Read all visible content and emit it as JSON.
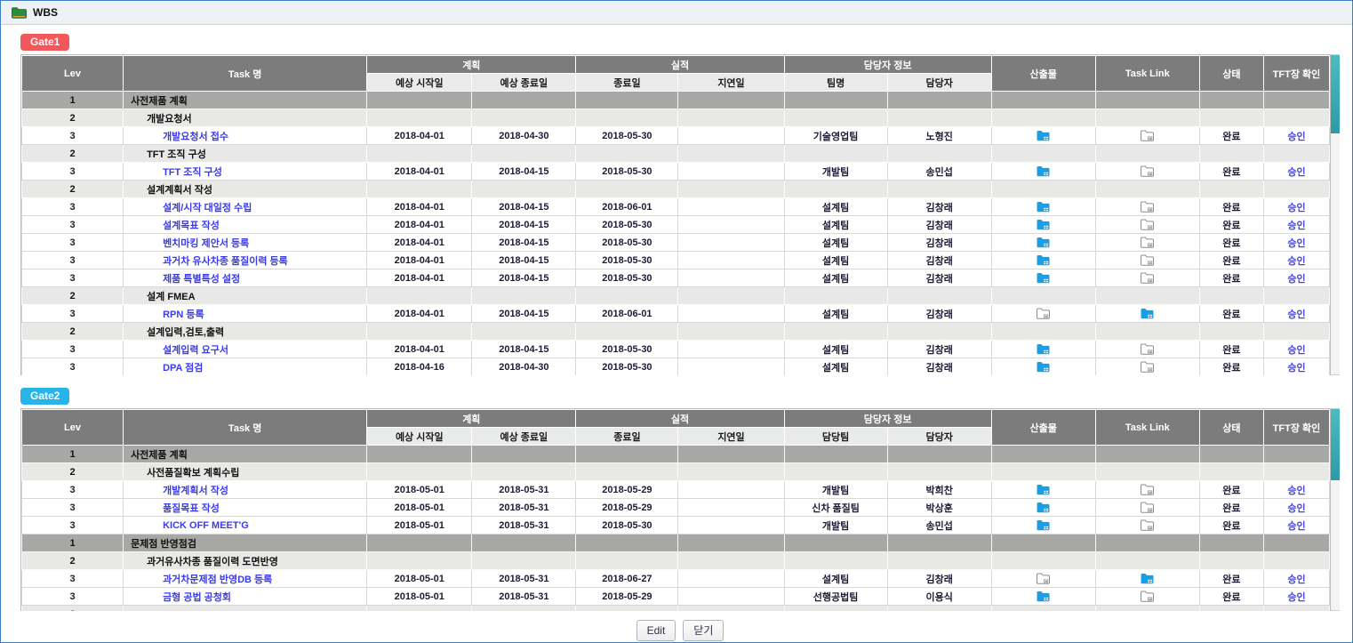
{
  "window": {
    "title": "WBS"
  },
  "icons": {
    "window": "green-folder-icon",
    "deliverable_filled": "blue-folder-icon",
    "tasklink_outline": "gray-folder-icon"
  },
  "colors": {
    "gate1_badge": "#f4575a",
    "gate2_badge": "#28b4e9",
    "header_bg": "#7c7c7c",
    "subheader_bg": "#e9ebeb",
    "level1_row": "#a7a7a5",
    "level2_row": "#e8e8e6",
    "link_blue": "#3b3bee",
    "approve_blue": "#4343f0",
    "deliverable_folder": "#189fe8",
    "tasklink_folder": "#8d8d8d",
    "scrollbar_teal": "#2fa3ad",
    "page_border": "#3f7ec4"
  },
  "tables": [
    {
      "gate": "Gate1",
      "headers": {
        "lev": "Lev",
        "task": "Task 명",
        "plan": "계획",
        "plan_start": "예상 시작일",
        "plan_end": "예상 종료일",
        "actual": "실적",
        "actual_end": "종료일",
        "delay": "지연일",
        "owner_group": "담당자 정보",
        "team": "팀명",
        "owner": "담당자",
        "deliverable": "산출물",
        "task_link": "Task Link",
        "status": "상태",
        "tft_confirm": "TFT장 확인"
      },
      "rows": [
        {
          "lev": "1",
          "task": "사전제품 계획"
        },
        {
          "lev": "2",
          "task": "개발요청서"
        },
        {
          "lev": "3",
          "task": "개발요청서 접수",
          "plan_start": "2018-04-01",
          "plan_end": "2018-04-30",
          "actual_end": "2018-05-30",
          "delay": "",
          "team": "기술영업팀",
          "owner": "노형진",
          "deliverable": "blue",
          "task_link": "gray",
          "status": "완료",
          "approve": "승인"
        },
        {
          "lev": "2",
          "task": "TFT 조직 구성"
        },
        {
          "lev": "3",
          "task": "TFT 조직 구성",
          "plan_start": "2018-04-01",
          "plan_end": "2018-04-15",
          "actual_end": "2018-05-30",
          "delay": "",
          "team": "개발팀",
          "owner": "송민섭",
          "deliverable": "blue",
          "task_link": "gray",
          "status": "완료",
          "approve": "승인"
        },
        {
          "lev": "2",
          "task": "설계계획서 작성"
        },
        {
          "lev": "3",
          "task": "설계/시작 대일정 수립",
          "plan_start": "2018-04-01",
          "plan_end": "2018-04-15",
          "actual_end": "2018-06-01",
          "delay": "",
          "team": "설계팀",
          "owner": "김창래",
          "deliverable": "blue",
          "task_link": "gray",
          "status": "완료",
          "approve": "승인"
        },
        {
          "lev": "3",
          "task": "설계목표 작성",
          "plan_start": "2018-04-01",
          "plan_end": "2018-04-15",
          "actual_end": "2018-05-30",
          "delay": "",
          "team": "설계팀",
          "owner": "김창래",
          "deliverable": "blue",
          "task_link": "gray",
          "status": "완료",
          "approve": "승인"
        },
        {
          "lev": "3",
          "task": "벤치마킹 제안서 등록",
          "plan_start": "2018-04-01",
          "plan_end": "2018-04-15",
          "actual_end": "2018-05-30",
          "delay": "",
          "team": "설계팀",
          "owner": "김창래",
          "deliverable": "blue",
          "task_link": "gray",
          "status": "완료",
          "approve": "승인"
        },
        {
          "lev": "3",
          "task": "과거차 유사차종 품질이력 등록",
          "plan_start": "2018-04-01",
          "plan_end": "2018-04-15",
          "actual_end": "2018-05-30",
          "delay": "",
          "team": "설계팀",
          "owner": "김창래",
          "deliverable": "blue",
          "task_link": "gray",
          "status": "완료",
          "approve": "승인"
        },
        {
          "lev": "3",
          "task": "제품 특별특성 설정",
          "plan_start": "2018-04-01",
          "plan_end": "2018-04-15",
          "actual_end": "2018-05-30",
          "delay": "",
          "team": "설계팀",
          "owner": "김창래",
          "deliverable": "blue",
          "task_link": "gray",
          "status": "완료",
          "approve": "승인"
        },
        {
          "lev": "2",
          "task": "설계 FMEA"
        },
        {
          "lev": "3",
          "task": "RPN 등록",
          "plan_start": "2018-04-01",
          "plan_end": "2018-04-15",
          "actual_end": "2018-06-01",
          "delay": "",
          "team": "설계팀",
          "owner": "김창래",
          "deliverable": "gray",
          "task_link": "blue",
          "status": "완료",
          "approve": "승인"
        },
        {
          "lev": "2",
          "task": "설계입력,검토,출력"
        },
        {
          "lev": "3",
          "task": "설계입력 요구서",
          "plan_start": "2018-04-01",
          "plan_end": "2018-04-15",
          "actual_end": "2018-05-30",
          "delay": "",
          "team": "설계팀",
          "owner": "김창래",
          "deliverable": "blue",
          "task_link": "gray",
          "status": "완료",
          "approve": "승인"
        },
        {
          "lev": "3",
          "task": "DPA 점검",
          "plan_start": "2018-04-16",
          "plan_end": "2018-04-30",
          "actual_end": "2018-05-30",
          "delay": "",
          "team": "설계팀",
          "owner": "김창래",
          "deliverable": "blue",
          "task_link": "gray",
          "status": "완료",
          "approve": "승인"
        }
      ]
    },
    {
      "gate": "Gate2",
      "headers": {
        "lev": "Lev",
        "task": "Task 명",
        "plan": "계획",
        "plan_start": "예상 시작일",
        "plan_end": "예상 종료일",
        "actual": "실적",
        "actual_end": "종료일",
        "delay": "지연일",
        "owner_group": "담당자 정보",
        "team": "담당팀",
        "owner": "담당자",
        "deliverable": "산출물",
        "task_link": "Task Link",
        "status": "상태",
        "tft_confirm": "TFT장 확인"
      },
      "rows": [
        {
          "lev": "1",
          "task": "사전제품 계획"
        },
        {
          "lev": "2",
          "task": "사전품질확보 계획수립"
        },
        {
          "lev": "3",
          "task": "개발계획서 작성",
          "plan_start": "2018-05-01",
          "plan_end": "2018-05-31",
          "actual_end": "2018-05-29",
          "delay": "",
          "team": "개발팀",
          "owner": "박희찬",
          "deliverable": "blue",
          "task_link": "gray",
          "status": "완료",
          "approve": "승인"
        },
        {
          "lev": "3",
          "task": "품질목표 작성",
          "plan_start": "2018-05-01",
          "plan_end": "2018-05-31",
          "actual_end": "2018-05-29",
          "delay": "",
          "team": "신차 품질팀",
          "owner": "박상훈",
          "deliverable": "blue",
          "task_link": "gray",
          "status": "완료",
          "approve": "승인"
        },
        {
          "lev": "3",
          "task": "KICK OFF MEET'G",
          "plan_start": "2018-05-01",
          "plan_end": "2018-05-31",
          "actual_end": "2018-05-30",
          "delay": "",
          "team": "개발팀",
          "owner": "송민섭",
          "deliverable": "blue",
          "task_link": "gray",
          "status": "완료",
          "approve": "승인"
        },
        {
          "lev": "1",
          "task": "문제점 반영점검"
        },
        {
          "lev": "2",
          "task": "과거유사차종 품질이력 도면반영"
        },
        {
          "lev": "3",
          "task": "과거차문제점 반영DB 등록",
          "plan_start": "2018-05-01",
          "plan_end": "2018-05-31",
          "actual_end": "2018-06-27",
          "delay": "",
          "team": "설계팀",
          "owner": "김창래",
          "deliverable": "gray",
          "task_link": "blue",
          "status": "완료",
          "approve": "승인"
        },
        {
          "lev": "3",
          "task": "금형 공법 공청회",
          "plan_start": "2018-05-01",
          "plan_end": "2018-05-31",
          "actual_end": "2018-05-29",
          "delay": "",
          "team": "선행공법팀",
          "owner": "이용식",
          "deliverable": "blue",
          "task_link": "gray",
          "status": "완료",
          "approve": "승인"
        },
        {
          "lev": "2",
          "task": ""
        }
      ]
    }
  ],
  "footer": {
    "edit_label": "Edit",
    "close_label": "닫기"
  }
}
